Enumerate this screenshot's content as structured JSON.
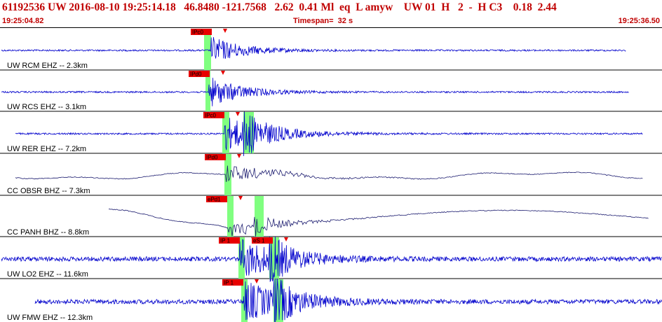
{
  "header": {
    "title": "61192536 UW 2016-08-10 19:25:14.18   46.8480 -121.7568   2.62  0.41 Ml  eq  L amyw    UW 01  H   2  -  H C3    0.18  2.44",
    "start_time": "19:25:04.82",
    "timespan": "Timespan=  32 s",
    "end_time": "19:25:36.50"
  },
  "colors": {
    "header_text": "#c00000",
    "trace_blue": "#0000cc",
    "trace_dark": "#1a1a6e",
    "pick_box": "#e80000",
    "pick_window": "#80ff80",
    "label": "#000000",
    "divider": "#000000"
  },
  "channels": [
    {
      "label": "UW RCM EHZ -- 2.3km",
      "style": "blue",
      "picks": [
        {
          "text": "IPc0"
        }
      ]
    },
    {
      "label": "UW RCS EHZ -- 3.1km",
      "style": "blue",
      "picks": [
        {
          "text": "IPd0"
        }
      ]
    },
    {
      "label": "UW RER EHZ -- 7.2km",
      "style": "blue",
      "picks": [
        {
          "text": "IPc0"
        }
      ]
    },
    {
      "label": "CC OBSR BHZ -- 7.3km",
      "style": "dark",
      "picks": [
        {
          "text": "IPd0"
        }
      ]
    },
    {
      "label": "CC PANH BHZ -- 8.8km",
      "style": "dark",
      "picks": [
        {
          "text": "ePd1"
        }
      ]
    },
    {
      "label": "UW LO2 EHZ -- 11.6km",
      "style": "blue",
      "picks": [
        {
          "text": "IP 1"
        },
        {
          "text": "eS 1"
        }
      ]
    },
    {
      "label": "UW FMW EHZ -- 12.3km",
      "style": "blue",
      "picks": [
        {
          "text": "IP 1"
        }
      ]
    }
  ]
}
